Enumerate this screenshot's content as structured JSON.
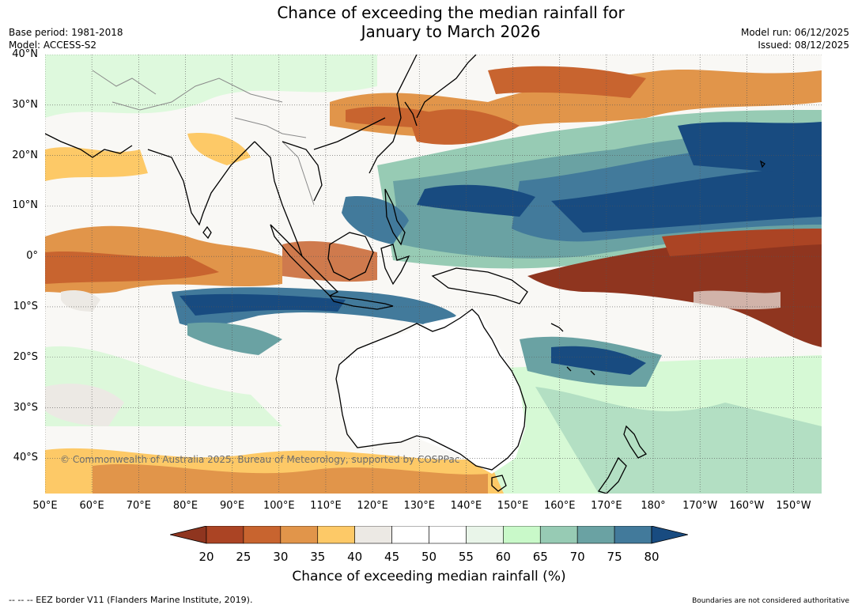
{
  "header": {
    "title": "Chance of exceeding the median rainfall for\nJanuary to March 2026",
    "base_period": "Base period: 1981-2018",
    "model": "Model: ACCESS-S2",
    "model_run": "Model run: 06/12/2025",
    "issued": "Issued: 08/12/2025"
  },
  "map": {
    "lat_labels": [
      "40°N",
      "30°N",
      "20°N",
      "10°N",
      "0°",
      "10°S",
      "20°S",
      "30°S",
      "40°S"
    ],
    "lon_labels": [
      "50°E",
      "60°E",
      "70°E",
      "80°E",
      "90°E",
      "100°E",
      "110°E",
      "120°E",
      "130°E",
      "140°E",
      "150°E",
      "160°E",
      "170°E",
      "180°",
      "170°W",
      "160°W",
      "150°W"
    ],
    "lon_values": [
      50,
      60,
      70,
      80,
      90,
      100,
      110,
      120,
      130,
      140,
      150,
      160,
      170,
      180,
      190,
      200,
      210
    ],
    "lat_values": [
      40,
      30,
      20,
      10,
      0,
      -10,
      -20,
      -30,
      -40
    ],
    "lon_range": [
      50,
      216
    ],
    "lat_range": [
      -47,
      40
    ],
    "copyright": "© Commonwealth of Australia 2025, Bureau of Meteorology, supported by COSPPac",
    "colors": {
      "land_outline": "#000000",
      "border_outline": "#8a8a8a",
      "grid": "#555555"
    }
  },
  "legend": {
    "title": "Chance of exceeding median rainfall (%)",
    "ticks": [
      "20",
      "25",
      "30",
      "35",
      "40",
      "45",
      "50",
      "55",
      "60",
      "65",
      "70",
      "75",
      "80"
    ],
    "bins": [
      "#8f351f",
      "#ab4424",
      "#c8642f",
      "#e1954a",
      "#fdc967",
      "#ece9e4",
      "#ffffff",
      "#ffffff",
      "#e9f5e9",
      "#c9f9c9",
      "#97cbb4",
      "#6aa2a3",
      "#427a9b",
      "#184b80"
    ]
  },
  "footer": {
    "eez": "--  --  -- EEZ border V11 (Flanders Marine Institute, 2019).",
    "disclaimer": "Boundaries are not considered authoritative"
  }
}
